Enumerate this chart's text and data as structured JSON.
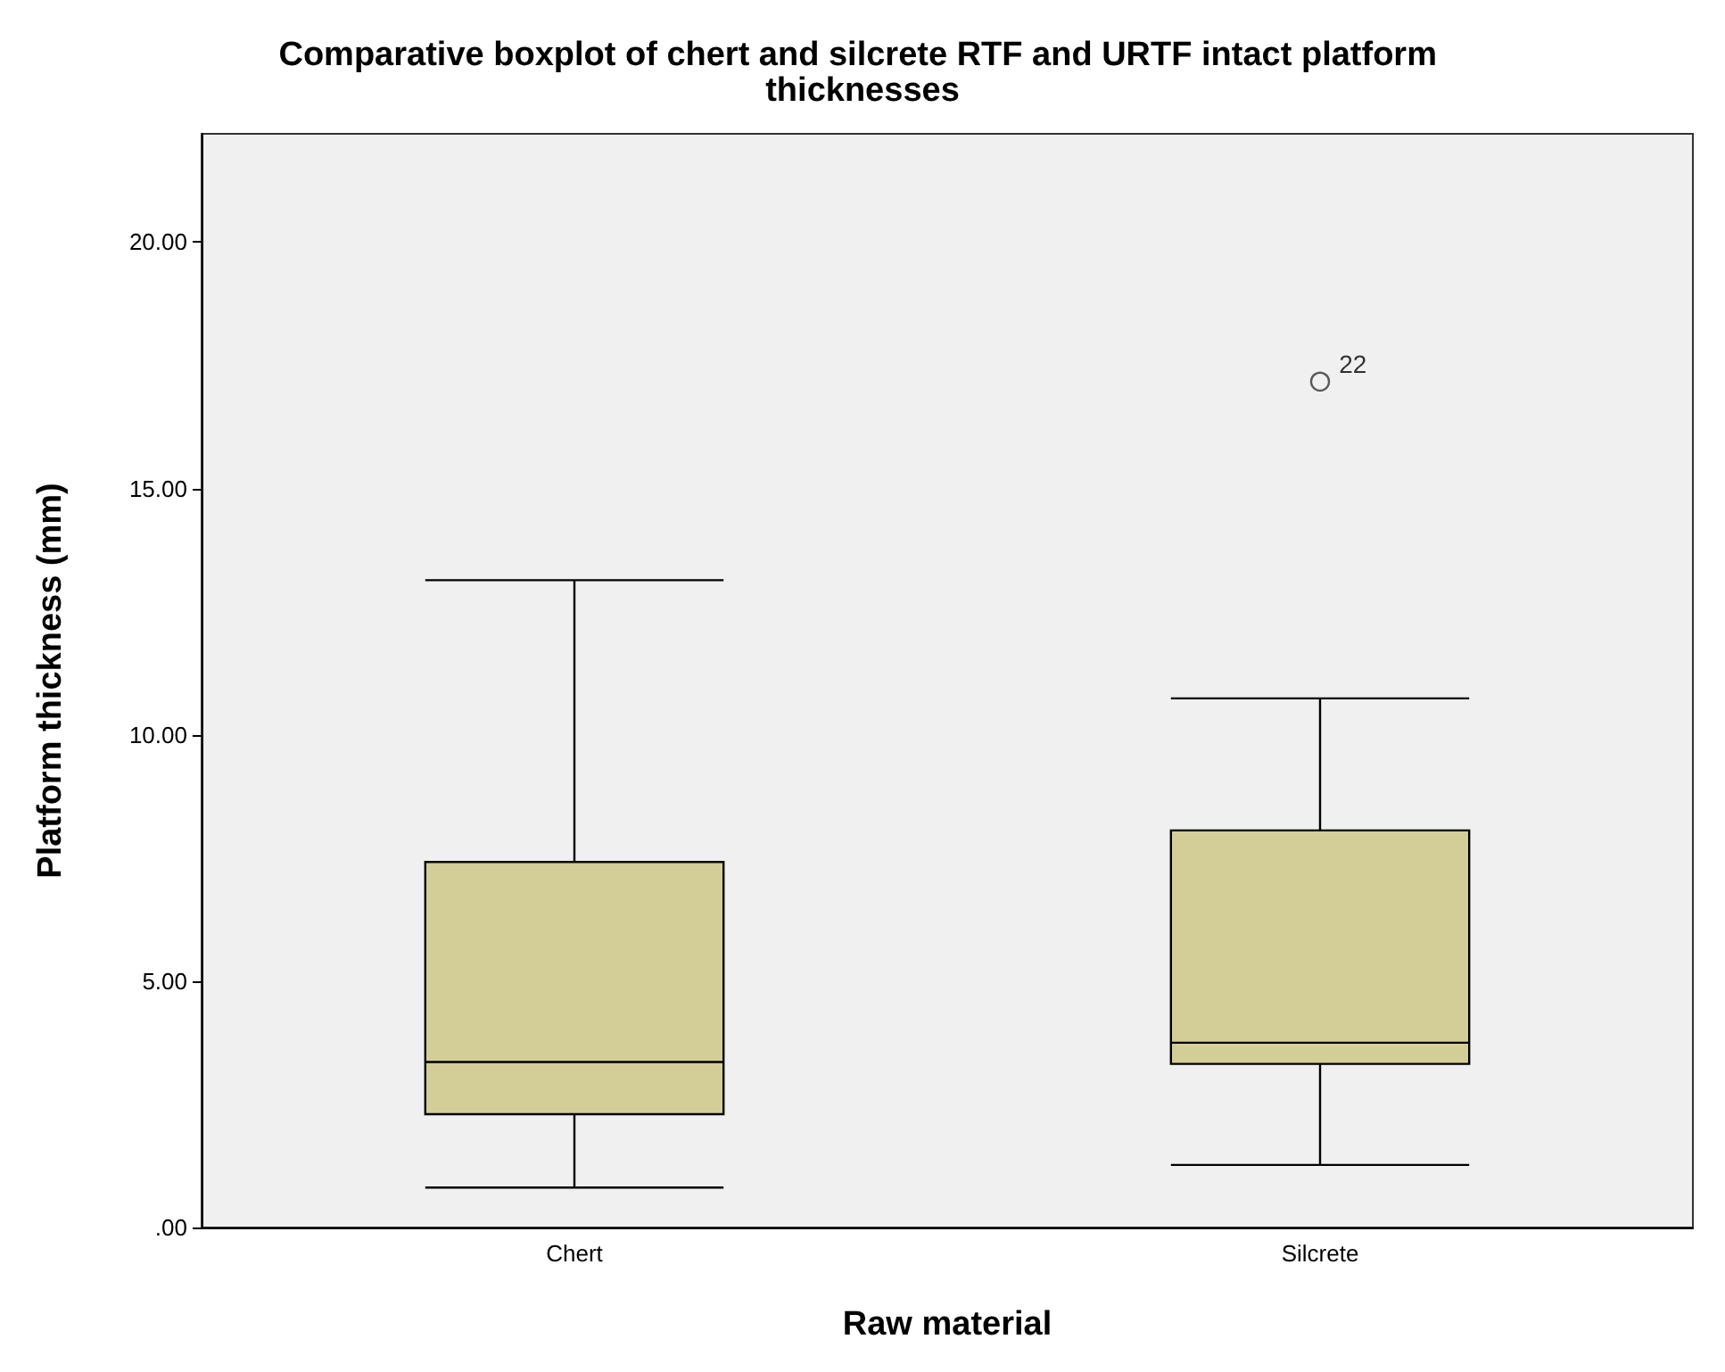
{
  "chart_data": {
    "type": "box",
    "title": "Comparative boxplot of chert and silcrete RTF and URTF intact platform thicknesses",
    "xlabel": "Raw material",
    "ylabel": "Platform thickness (mm)",
    "categories": [
      "Chert",
      "Silcrete"
    ],
    "series": [
      {
        "color": "#d3ce97",
        "boxes": [
          {
            "low": 0.81,
            "q1": 2.3,
            "median": 3.36,
            "q3": 7.42,
            "high": 13.14
          },
          {
            "low": 1.27,
            "q1": 3.32,
            "median": 3.75,
            "q3": 8.06,
            "high": 10.74,
            "outliers": [
              17.17
            ]
          }
        ]
      }
    ],
    "ylim": [
      0,
      22.2
    ],
    "yticks": [
      {
        "value": 0,
        "label": ".00"
      },
      {
        "value": 5,
        "label": "5.00"
      },
      {
        "value": 10,
        "label": "10.00"
      },
      {
        "value": 15,
        "label": "15.00"
      },
      {
        "value": 20,
        "label": "20.00"
      }
    ],
    "annotations": [
      "22"
    ],
    "grid": false
  }
}
